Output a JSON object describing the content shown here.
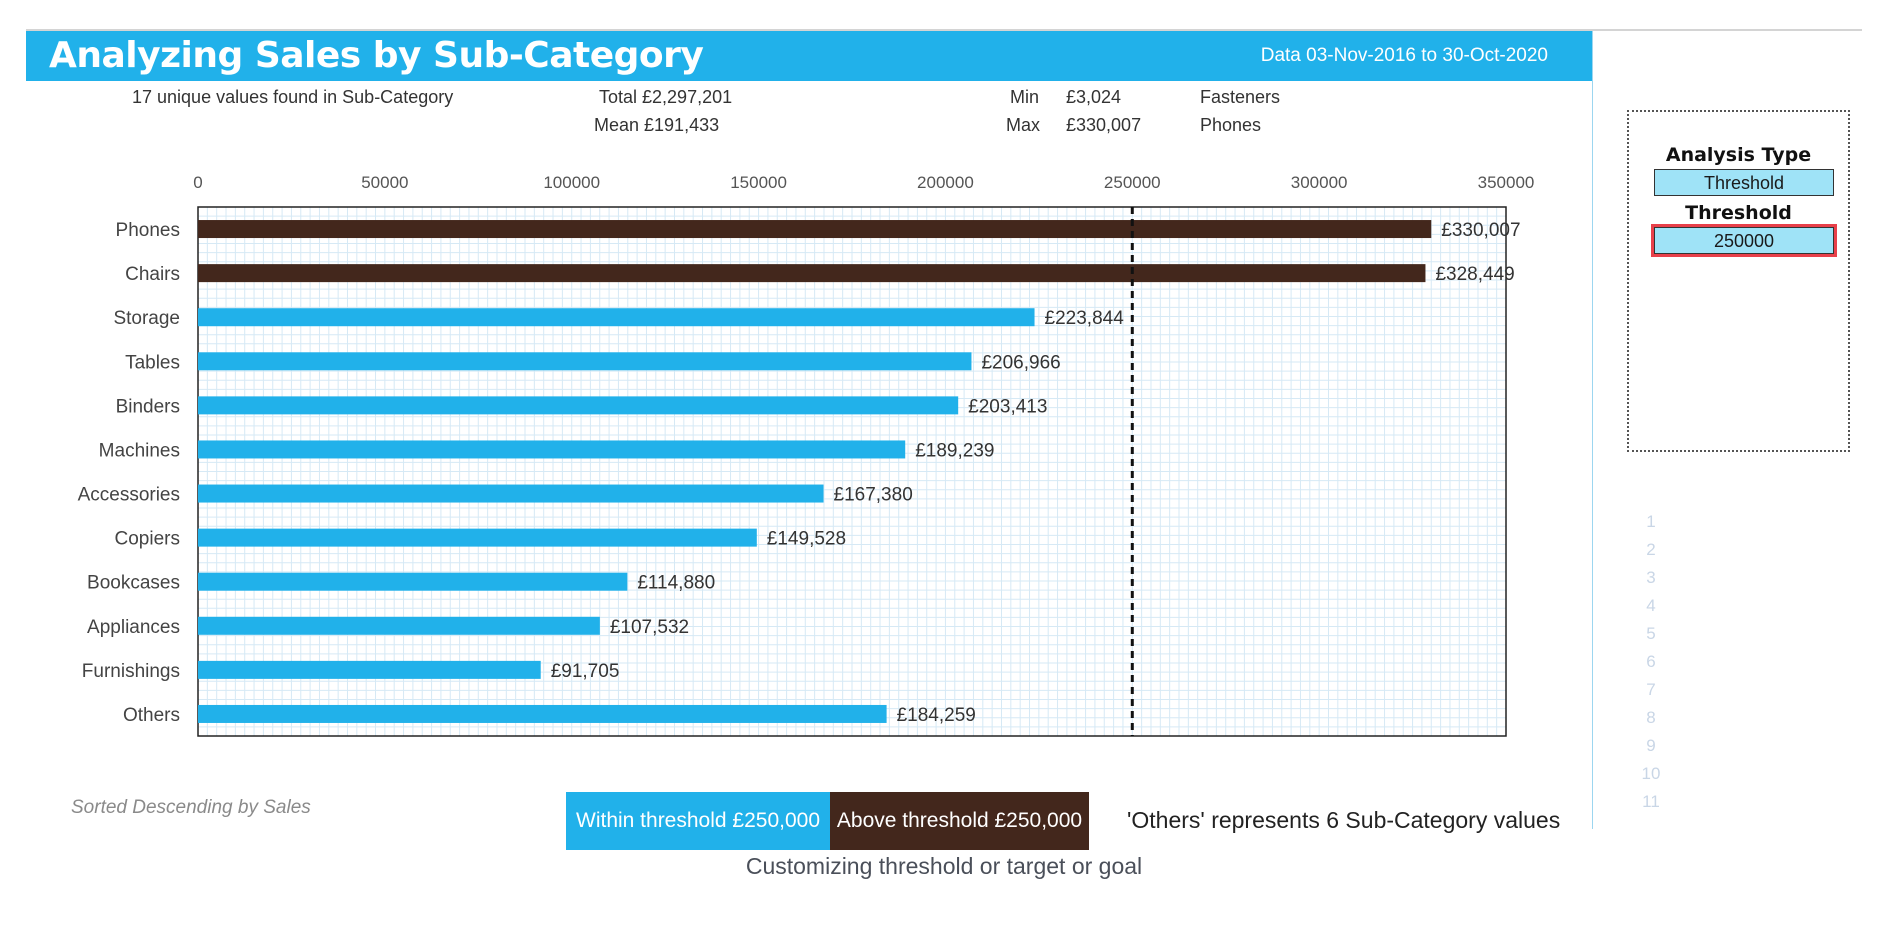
{
  "header": {
    "title": "Analyzing Sales by Sub-Category",
    "date_range": "Data 03-Nov-2016 to 30-Oct-2020"
  },
  "stats": {
    "unique_values": "17 unique values found in Sub-Category",
    "total": "Total £2,297,201",
    "mean": "Mean £191,433",
    "min_label": "Min",
    "min_value": "£3,024",
    "min_category": "Fasteners",
    "max_label": "Max",
    "max_value": "£330,007",
    "max_category": "Phones"
  },
  "chart_data": {
    "type": "bar",
    "orientation": "horizontal",
    "categories": [
      "Phones",
      "Chairs",
      "Storage",
      "Tables",
      "Binders",
      "Machines",
      "Accessories",
      "Copiers",
      "Bookcases",
      "Appliances",
      "Furnishings",
      "Others"
    ],
    "values": [
      330007,
      328449,
      223844,
      206966,
      203413,
      189239,
      167380,
      149528,
      114880,
      107532,
      91705,
      184259
    ],
    "value_labels": [
      "£330,007",
      "£328,449",
      "£223,844",
      "£206,966",
      "£203,413",
      "£189,239",
      "£167,380",
      "£149,528",
      "£114,880",
      "£107,532",
      "£91,705",
      "£184,259"
    ],
    "x_ticks": [
      0,
      50000,
      100000,
      150000,
      200000,
      250000,
      300000,
      350000
    ],
    "xlim": [
      0,
      350000
    ],
    "threshold": 250000,
    "grid": true,
    "axis_position": "top",
    "colors": {
      "within": "#21b1ea",
      "above": "#43271c",
      "threshold_line": "#111111",
      "grid": "#d6e9f5"
    }
  },
  "legend": {
    "within": "Within threshold £250,000",
    "above": "Above threshold £250,000"
  },
  "notes": {
    "sorted": "Sorted Descending by Sales",
    "others": "'Others' represents 6 Sub-Category values"
  },
  "panel": {
    "analysis_type_label": "Analysis Type",
    "analysis_type_value": "Threshold",
    "threshold_label": "Threshold",
    "threshold_value": "250000"
  },
  "row_numbers": [
    "1",
    "2",
    "3",
    "4",
    "5",
    "6",
    "7",
    "8",
    "9",
    "10",
    "11"
  ],
  "caption": "Customizing threshold or target or goal"
}
